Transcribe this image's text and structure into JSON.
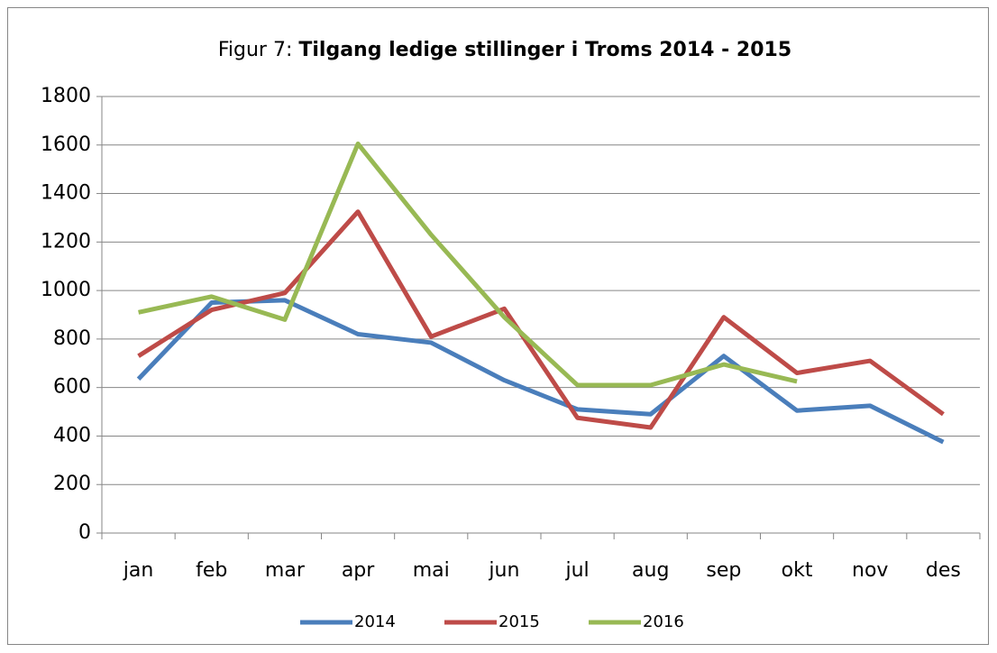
{
  "chart_data": {
    "type": "line",
    "title": [
      "Figur 7:",
      "Tilgang ledige stillinger i Troms 2014 - 2015"
    ],
    "categories": [
      "jan",
      "feb",
      "mar",
      "apr",
      "mai",
      "jun",
      "jul",
      "aug",
      "sep",
      "okt",
      "nov",
      "des"
    ],
    "series": [
      {
        "name": "2014",
        "color": "#4a7ebb",
        "values": [
          635,
          950,
          960,
          820,
          785,
          630,
          510,
          490,
          730,
          505,
          525,
          375
        ]
      },
      {
        "name": "2015",
        "color": "#be4b48",
        "values": [
          730,
          920,
          990,
          1325,
          810,
          925,
          475,
          435,
          890,
          660,
          710,
          490
        ]
      },
      {
        "name": "2016",
        "color": "#98b954",
        "values": [
          910,
          975,
          880,
          1605,
          1230,
          890,
          610,
          610,
          695,
          625,
          null,
          null
        ]
      }
    ],
    "ylim": [
      0,
      1800
    ],
    "yticks": [
      0,
      200,
      400,
      600,
      800,
      1000,
      1200,
      1400,
      1600,
      1800
    ],
    "grid": true,
    "legend": "bottom"
  }
}
